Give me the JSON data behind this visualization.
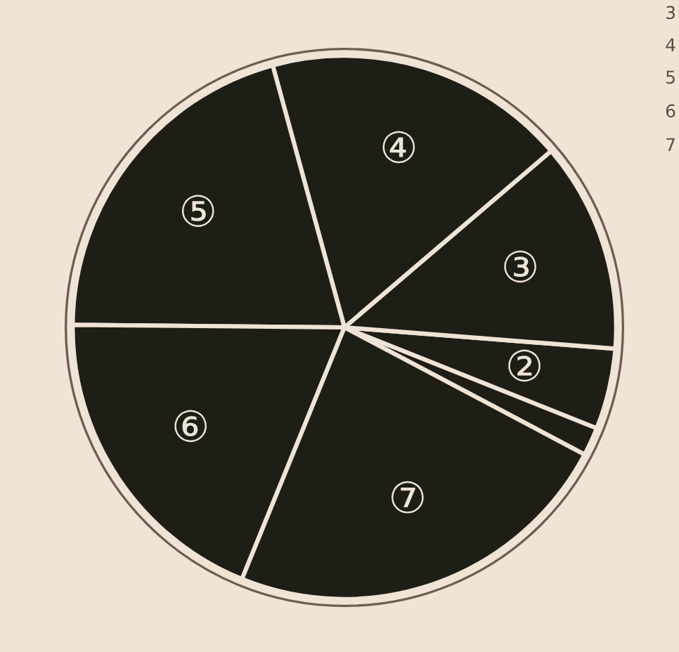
{
  "chart_data": {
    "type": "pie",
    "categories": [
      null,
      "②",
      "③",
      "④",
      "⑤",
      "⑥",
      "⑦"
    ],
    "values": [
      1.7,
      4.8,
      12.5,
      18.0,
      20.6,
      19.0,
      23.4
    ],
    "colors": [
      "#1e1d16",
      "#1e1d16",
      "#1e1d16",
      "#1e1d16",
      "#1e1d16",
      "#1e1d16",
      "#1e1d16"
    ],
    "annotations": [
      "3",
      "4",
      "5",
      "6",
      "7"
    ]
  }
}
